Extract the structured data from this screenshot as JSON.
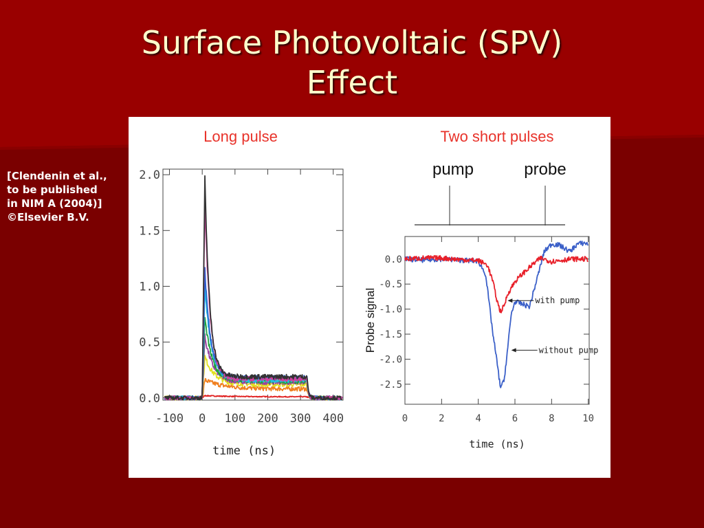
{
  "slide": {
    "title_line1": "Surface Photovoltaic (SPV)",
    "title_line2": "Effect",
    "citation": [
      "[Clendenin et al.,",
      "to be published",
      "in NIM A (2004)]",
      "©Elsevier B.V."
    ]
  },
  "colors": {
    "background": "#7a0000",
    "title": "#ffffcc",
    "panel_heading": "#e8322a",
    "red_trace": "#e8202a",
    "blue_trace": "#3a5fc8"
  },
  "chart_data": [
    {
      "type": "line",
      "title": "Long pulse",
      "xlabel": "time (ns)",
      "ylabel": "",
      "xlim": [
        -120,
        430
      ],
      "ylim": [
        -0.02,
        2.05
      ],
      "xticks": [
        -100,
        0,
        100,
        200,
        300,
        400
      ],
      "xtick_labels": [
        "-100",
        "0",
        "100",
        "200",
        "300",
        "400"
      ],
      "yticks": [
        0.0,
        0.5,
        1.0,
        1.5,
        2.0
      ],
      "ytick_labels": [
        "0.0",
        "0.5",
        "1.0",
        "1.5",
        "2.0"
      ],
      "legend": "none",
      "series": [
        {
          "color": "#333333",
          "peak": 1.97,
          "plateau": 0.19,
          "tau": 15
        },
        {
          "color": "#d040a0",
          "peak": 1.78,
          "plateau": 0.17,
          "tau": 16
        },
        {
          "color": "#3060d0",
          "peak": 1.15,
          "plateau": 0.18,
          "tau": 18
        },
        {
          "color": "#20c0e0",
          "peak": 1.0,
          "plateau": 0.16,
          "tau": 20
        },
        {
          "color": "#20a040",
          "peak": 0.72,
          "plateau": 0.15,
          "tau": 22
        },
        {
          "color": "#9a40a0",
          "peak": 0.55,
          "plateau": 0.14,
          "tau": 25
        },
        {
          "color": "#e0e020",
          "peak": 0.37,
          "plateau": 0.12,
          "tau": 30
        },
        {
          "color": "#f08020",
          "peak": 0.16,
          "plateau": 0.08,
          "tau": 60
        },
        {
          "color": "#e02020",
          "peak": 0.02,
          "plateau": 0.01,
          "tau": 80
        }
      ]
    },
    {
      "type": "line",
      "title": "Two short pulses",
      "pulse_labels": [
        "pump",
        "probe"
      ],
      "xlabel": "time (ns)",
      "ylabel": "Probe signal",
      "xlim": [
        0,
        10.05
      ],
      "ylim": [
        -2.9,
        0.45
      ],
      "xticks": [
        0,
        2,
        4,
        6,
        8,
        10
      ],
      "xtick_labels": [
        "0",
        "2",
        "4",
        "6",
        "8",
        "10"
      ],
      "yticks": [
        0.0,
        -0.5,
        -1.0,
        -1.5,
        -2.0,
        -2.5
      ],
      "ytick_labels": [
        "0.0",
        "-0.5",
        "-1.0",
        "-1.5",
        "-2.0",
        "-2.5"
      ],
      "legend": "annotations",
      "annotations": [
        {
          "text": "with pump",
          "x": 5.6,
          "y": -0.83
        },
        {
          "text": "without pump",
          "x": 5.8,
          "y": -1.82
        }
      ],
      "series": [
        {
          "name": "with pump",
          "color": "#e8202a",
          "x": [
            0,
            1,
            2,
            3,
            4,
            4.5,
            4.8,
            5.0,
            5.2,
            5.4,
            5.6,
            6.0,
            6.4,
            7.0,
            7.4,
            8.0,
            9.0,
            10.0
          ],
          "y": [
            0.0,
            0.02,
            0.02,
            -0.01,
            -0.03,
            -0.12,
            -0.45,
            -0.8,
            -1.05,
            -0.95,
            -0.7,
            -0.45,
            -0.3,
            -0.1,
            0.02,
            -0.05,
            0.0,
            0.0
          ]
        },
        {
          "name": "without pump",
          "color": "#3a5fc8",
          "x": [
            0,
            1,
            2,
            3,
            4,
            4.4,
            4.6,
            4.8,
            5.0,
            5.2,
            5.4,
            5.6,
            5.8,
            6.0,
            6.4,
            6.8,
            7.2,
            7.6,
            8.0,
            8.4,
            9.0,
            9.4,
            9.8,
            10.0
          ],
          "y": [
            0.0,
            -0.02,
            0.0,
            -0.02,
            -0.04,
            -0.3,
            -0.9,
            -1.5,
            -2.0,
            -2.55,
            -2.45,
            -1.8,
            -1.1,
            -0.85,
            -0.9,
            -0.95,
            -0.4,
            0.15,
            0.3,
            0.28,
            0.15,
            0.3,
            0.32,
            0.3
          ]
        }
      ]
    }
  ]
}
